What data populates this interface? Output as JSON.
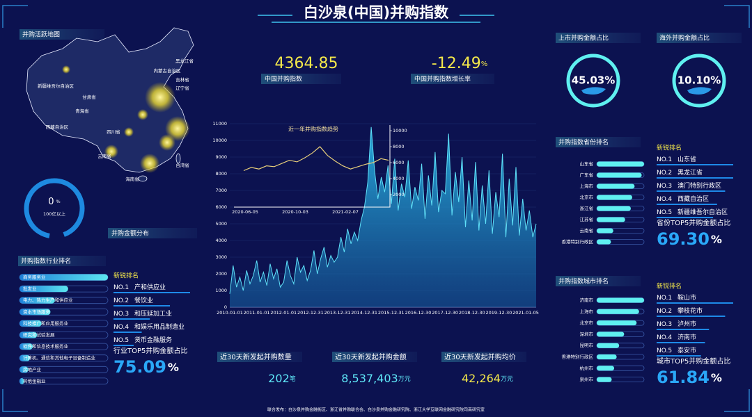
{
  "header": {
    "title": "白沙泉(中国)并购指数"
  },
  "map": {
    "title": "并购活跃地图",
    "labels": [
      "黑龙江省",
      "内蒙古自治区",
      "吉林省",
      "辽宁省",
      "新疆维吾尔自治区",
      "甘肃省",
      "青海省",
      "西藏自治区",
      "四川省",
      "云南省",
      "海南省",
      "台湾省"
    ]
  },
  "gauge": {
    "value": "0",
    "unit": "%",
    "label": "100亿以上"
  },
  "distribution": {
    "title": "并购金额分布"
  },
  "kpi": {
    "index": {
      "value": "4364.85",
      "label": "中国并购指数"
    },
    "growth": {
      "value": "-12.49",
      "unit": "%",
      "label": "中国并购指数增长率"
    }
  },
  "rings": [
    {
      "title": "上市并购金额占比",
      "value": "45.03%"
    },
    {
      "title": "海外并购金额占比",
      "value": "10.10%"
    }
  ],
  "main_chart": {
    "type": "area",
    "ylim": [
      0,
      11000
    ],
    "yticks": [
      0,
      1000,
      2000,
      3000,
      4000,
      5000,
      6000,
      7000,
      8000,
      9000,
      10000,
      11000
    ],
    "xtick_labels": [
      "2010-01-01",
      "2011-01-01",
      "2012-01-01",
      "2012-12-31",
      "2013-12-31",
      "2014-12-31",
      "2015-12-31",
      "2016-12-30",
      "2017-12-30",
      "2018-12-30",
      "2019-12-30",
      "2021-01-05"
    ],
    "values": [
      800,
      2500,
      1200,
      1800,
      1000,
      2200,
      1400,
      1900,
      2800,
      1500,
      2100,
      1300,
      2600,
      1700,
      2300,
      1200,
      1500,
      2800,
      1900,
      1400,
      3000,
      2100,
      2500,
      1600,
      2200,
      3400,
      2000,
      2900,
      3600,
      2400,
      3100,
      2700,
      3000,
      4200,
      3300,
      4700,
      3800,
      4500,
      4000,
      5200,
      6000,
      7500,
      10800,
      8200,
      6500,
      7800,
      6900,
      8500,
      6200,
      8900,
      5800,
      7400,
      6600,
      8800,
      5900,
      7200,
      6400,
      8600,
      5300,
      7900,
      6100,
      9300,
      5700,
      7000,
      6800,
      10400,
      5500,
      8100,
      6300,
      9000,
      4800,
      7600,
      5200,
      8700,
      4600,
      7300,
      5000,
      8200,
      4400,
      6900,
      5400,
      9200,
      4200,
      7700,
      4900,
      8400,
      4300,
      6500,
      4600,
      5800,
      4200,
      5000
    ]
  },
  "inset_chart": {
    "type": "line",
    "title": "近一年并购指数趋势",
    "ylim": [
      0,
      10000
    ],
    "yticks": [
      2000,
      4000,
      6000,
      8000,
      10000
    ],
    "xtick_labels": [
      "2020-06-05",
      "2020-10-03",
      "2021-02-07"
    ],
    "values": [
      5000,
      5400,
      5200,
      5600,
      5500,
      5900,
      6300,
      6100,
      6600,
      7200,
      8000,
      6900,
      6200,
      5600,
      5200,
      5500,
      5800,
      6000,
      6500,
      6300
    ]
  },
  "industry": {
    "title": "并购指数行业排名",
    "names": [
      "商务服务业",
      "批发业",
      "电力、热力生产和供应业",
      "资本市场服务",
      "科技推广和应用服务业",
      "研究和试验发展",
      "软件和信息技术服务业",
      "计算机、通信和其他电子设备制造业",
      "房地产业",
      "其他金融业"
    ],
    "values": [
      100,
      55,
      40,
      35,
      25,
      20,
      15,
      12,
      10,
      5
    ],
    "new_title": "新锐排名",
    "new": [
      {
        "rank": "NO.1",
        "name": "产和供应业",
        "value": 95
      },
      {
        "rank": "NO.2",
        "name": "餐饮业",
        "value": 70
      },
      {
        "rank": "NO.3",
        "name": "和压延加工业",
        "value": 45
      },
      {
        "rank": "NO.4",
        "name": "和娱乐用品制造业",
        "value": 35
      },
      {
        "rank": "NO.5",
        "name": "货币金融服务",
        "value": 25
      }
    ],
    "share_label": "行业TOP5并购金额占比",
    "share_value": "75.09",
    "share_unit": "%"
  },
  "province": {
    "title": "并购指数省份排名",
    "names": [
      "山东省",
      "广东省",
      "上海市",
      "北京市",
      "浙江省",
      "江苏省",
      "云南省",
      "香港特别行政区"
    ],
    "values": [
      100,
      95,
      80,
      75,
      72,
      60,
      35,
      30
    ],
    "new_title": "新锐排名",
    "new": [
      {
        "rank": "NO.1",
        "name": "山东省",
        "value": 95
      },
      {
        "rank": "NO.2",
        "name": "黑龙江省",
        "value": 95
      },
      {
        "rank": "NO.3",
        "name": "澳门特别行政区",
        "value": 85
      },
      {
        "rank": "NO.4",
        "name": "西藏自治区",
        "value": 75
      },
      {
        "rank": "NO.5",
        "name": "新疆维吾尔自治区",
        "value": 70
      }
    ],
    "share_label": "省份TOP5并购金额占比",
    "share_value": "69.30",
    "share_unit": "%"
  },
  "city": {
    "title": "并购指数城市排名",
    "names": [
      "济南市",
      "上海市",
      "北京市",
      "深圳市",
      "昆明市",
      "香港特别行政区",
      "杭州市",
      "泉州市"
    ],
    "values": [
      95,
      85,
      80,
      55,
      45,
      40,
      35,
      30
    ],
    "new_title": "新锐排名",
    "new": [
      {
        "rank": "NO.1",
        "name": "鞍山市",
        "value": 95
      },
      {
        "rank": "NO.2",
        "name": "攀枝花市",
        "value": 85
      },
      {
        "rank": "NO.3",
        "name": "泸州市",
        "value": 65
      },
      {
        "rank": "NO.4",
        "name": "济南市",
        "value": 60
      },
      {
        "rank": "NO.5",
        "name": "泰安市",
        "value": 55
      }
    ],
    "share_label": "城市TOP5并购金额占比",
    "share_value": "61.84",
    "share_unit": "%"
  },
  "bottom": [
    {
      "label": "近30天新发起并购数量",
      "value": "202",
      "unit": "笔"
    },
    {
      "label": "近30天新发起并购金额",
      "value": "8,537,403",
      "unit": "万元"
    },
    {
      "label": "近30天新发起并购均价",
      "value": "42,264",
      "unit": "万元"
    }
  ],
  "footer": "联合发布：白沙泉并购金融街区、浙江省并购联合会、白沙泉并购金融研究院、浙江大学互联网金融研究院司南研究室"
}
